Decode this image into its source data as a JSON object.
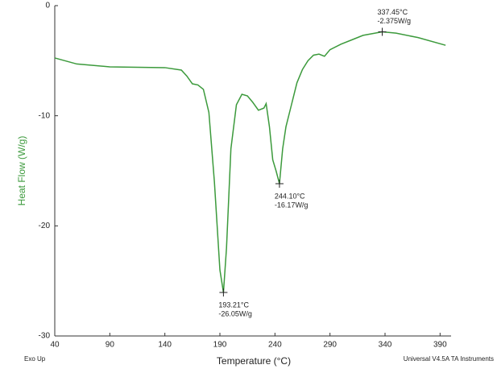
{
  "chart_data": {
    "type": "line",
    "x_label": "Temperature (°C)",
    "y_label": "Heat Flow (W/g)",
    "footer_left": "Exo Up",
    "footer_right": "Universal V4.5A TA Instruments",
    "xlim": [
      40,
      400
    ],
    "ylim": [
      -30,
      0
    ],
    "xticks": [
      40,
      90,
      140,
      190,
      240,
      290,
      340,
      390
    ],
    "yticks": [
      0,
      -10,
      -20,
      -30
    ],
    "series": [
      {
        "color": "#3c9a3c",
        "x": [
          40,
          60,
          90,
          140,
          155,
          160,
          165,
          170,
          175,
          180,
          185,
          190,
          193.21,
          196,
          200,
          205,
          210,
          215,
          220,
          225,
          230,
          232,
          235,
          238,
          241,
          244.1,
          247,
          250,
          255,
          260,
          265,
          270,
          275,
          280,
          285,
          290,
          300,
          310,
          320,
          337.45,
          350,
          370,
          395
        ],
        "values": [
          -4.75,
          -5.3,
          -5.56,
          -5.63,
          -5.85,
          -6.4,
          -7.1,
          -7.2,
          -7.6,
          -9.7,
          -16,
          -24,
          -26.05,
          -22,
          -13,
          -9,
          -8.05,
          -8.2,
          -8.8,
          -9.5,
          -9.3,
          -8.9,
          -11,
          -14,
          -15,
          -16.17,
          -13,
          -11,
          -9,
          -7,
          -5.8,
          -5,
          -4.5,
          -4.4,
          -4.6,
          -4.0,
          -3.5,
          -3.1,
          -2.7,
          -2.375,
          -2.5,
          -2.9,
          -3.6
        ]
      }
    ],
    "annotations": [
      {
        "x": 337.45,
        "y": -2.375,
        "label": [
          "337.45°C",
          "-2.375W/g"
        ]
      },
      {
        "x": 244.1,
        "y": -16.17,
        "label": [
          "244.10°C",
          "-16.17W/g"
        ]
      },
      {
        "x": 193.21,
        "y": -26.05,
        "label": [
          "193.21°C",
          "-26.05W/g"
        ]
      }
    ]
  }
}
